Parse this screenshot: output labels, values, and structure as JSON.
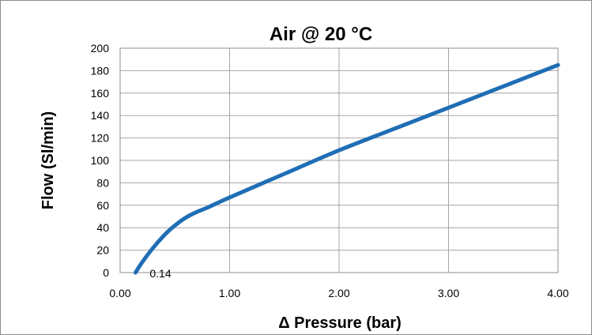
{
  "chart_data": {
    "type": "line",
    "title": "Air @ 20 °C",
    "xlabel": "Δ Pressure (bar)",
    "ylabel": "Flow (Sl/min)",
    "xlim": [
      0,
      4
    ],
    "ylim": [
      0,
      200
    ],
    "x_ticks": [
      "0.00",
      "1.00",
      "2.00",
      "3.00",
      "4.00"
    ],
    "y_ticks": [
      "0",
      "20",
      "40",
      "60",
      "80",
      "100",
      "120",
      "140",
      "160",
      "180",
      "200"
    ],
    "grid": true,
    "legend": "none",
    "series": [
      {
        "color": "#1f6eb5",
        "x": [
          0.14,
          0.2,
          0.3,
          0.4,
          0.5,
          0.6,
          0.7,
          0.8,
          1.0,
          1.5,
          2.0,
          2.5,
          3.0,
          3.5,
          4.0
        ],
        "y": [
          0,
          9,
          22,
          33,
          42,
          49,
          54,
          58,
          67,
          88,
          109,
          128,
          147,
          166,
          185
        ]
      }
    ],
    "annotations": [
      {
        "text": "0.14",
        "x": 0.14,
        "y": 0
      }
    ]
  }
}
